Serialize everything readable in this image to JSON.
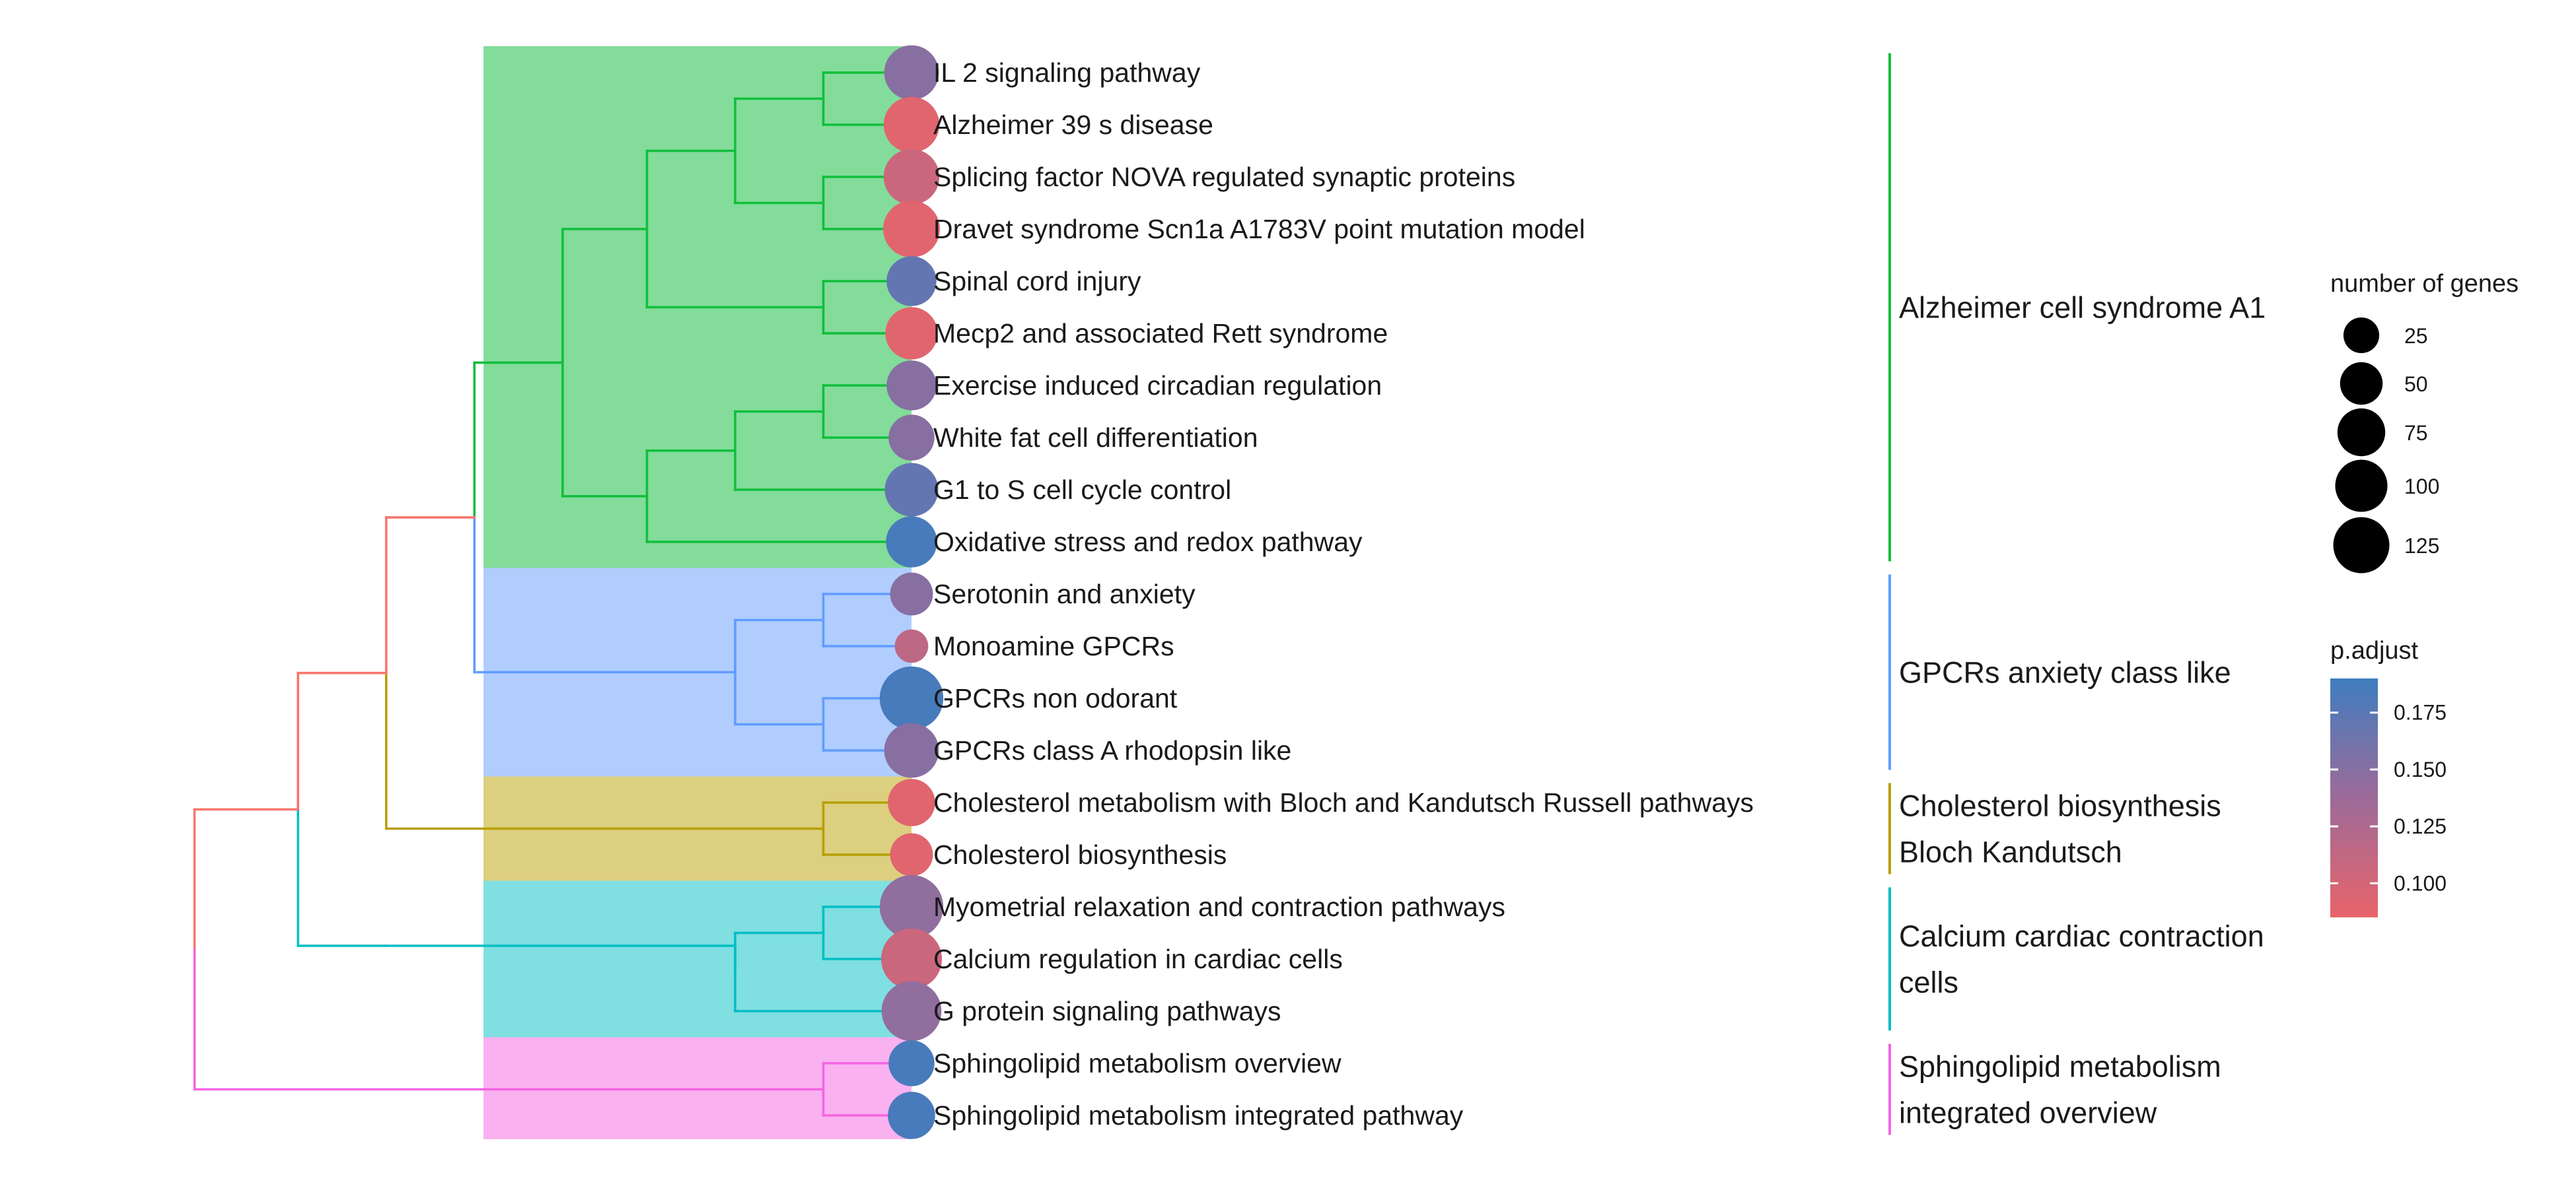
{
  "chart_data": {
    "type": "tree",
    "terms": [
      {
        "label": "IL 2 signaling pathway",
        "cluster": 0,
        "count": 90,
        "p_adjust": 0.15
      },
      {
        "label": "Alzheimer 39 s disease",
        "cluster": 0,
        "count": 95,
        "p_adjust": 0.09
      },
      {
        "label": "Splicing factor NOVA regulated synaptic proteins",
        "cluster": 0,
        "count": 95,
        "p_adjust": 0.105
      },
      {
        "label": "Dravet syndrome Scn1a A1783V point mutation model",
        "cluster": 0,
        "count": 100,
        "p_adjust": 0.09
      },
      {
        "label": "Spinal cord injury",
        "cluster": 0,
        "count": 70,
        "p_adjust": 0.17
      },
      {
        "label": "Mecp2 and associated Rett syndrome",
        "cluster": 0,
        "count": 80,
        "p_adjust": 0.09
      },
      {
        "label": "Exercise induced circadian regulation",
        "cluster": 0,
        "count": 70,
        "p_adjust": 0.15
      },
      {
        "label": "White fat cell differentiation",
        "cluster": 0,
        "count": 55,
        "p_adjust": 0.15
      },
      {
        "label": "G1 to S cell cycle control",
        "cluster": 0,
        "count": 85,
        "p_adjust": 0.17
      },
      {
        "label": "Oxidative stress and redox pathway",
        "cluster": 0,
        "count": 75,
        "p_adjust": 0.185
      },
      {
        "label": "Serotonin and anxiety",
        "cluster": 1,
        "count": 45,
        "p_adjust": 0.15
      },
      {
        "label": "Monoamine GPCRs",
        "cluster": 1,
        "count": 20,
        "p_adjust": 0.115
      },
      {
        "label": "GPCRs non odorant",
        "cluster": 1,
        "count": 135,
        "p_adjust": 0.185
      },
      {
        "label": "GPCRs class A rhodopsin like",
        "cluster": 1,
        "count": 90,
        "p_adjust": 0.15
      },
      {
        "label": "Cholesterol metabolism with Bloch and Kandutsch Russell pathways",
        "cluster": 2,
        "count": 60,
        "p_adjust": 0.09
      },
      {
        "label": "Cholesterol biosynthesis",
        "cluster": 2,
        "count": 45,
        "p_adjust": 0.09
      },
      {
        "label": "Myometrial relaxation and contraction pathways",
        "cluster": 3,
        "count": 135,
        "p_adjust": 0.145
      },
      {
        "label": "Calcium regulation in cardiac cells",
        "cluster": 3,
        "count": 120,
        "p_adjust": 0.105
      },
      {
        "label": "G protein signaling pathways",
        "cluster": 3,
        "count": 115,
        "p_adjust": 0.145
      },
      {
        "label": "Sphingolipid metabolism overview",
        "cluster": 4,
        "count": 55,
        "p_adjust": 0.185
      },
      {
        "label": "Sphingolipid metabolism integrated pathway",
        "cluster": 4,
        "count": 60,
        "p_adjust": 0.185
      }
    ],
    "clusters": [
      {
        "name": "Alzheimer cell syndrome A1",
        "lines": [
          "Alzheimer cell syndrome A1"
        ],
        "branch_color": "#10bf3b",
        "fill_color": "#83dc9a",
        "first": 0,
        "last": 9
      },
      {
        "name": "GPCRs anxiety class like",
        "lines": [
          "GPCRs anxiety class like"
        ],
        "branch_color": "#619cff",
        "fill_color": "#b0cdfe",
        "first": 10,
        "last": 13
      },
      {
        "name": "Cholesterol biosynthesis Bloch Kandutsch",
        "lines": [
          "Cholesterol biosynthesis",
          "Bloch Kandutsch"
        ],
        "branch_color": "#b79f00",
        "fill_color": "#dccf7f",
        "first": 14,
        "last": 15
      },
      {
        "name": "Calcium cardiac contraction cells",
        "lines": [
          "Calcium cardiac contraction",
          "cells"
        ],
        "branch_color": "#00bfc4",
        "fill_color": "#7fdfe1",
        "first": 16,
        "last": 18
      },
      {
        "name": "Sphingolipid metabolism integrated overview",
        "lines": [
          "Sphingolipid metabolism",
          "integrated overview"
        ],
        "branch_color": "#f564e3",
        "fill_color": "#f9b1f0",
        "first": 19,
        "last": 20
      }
    ],
    "dendrogram": {
      "leaf_tip": 1.0,
      "cluster_nodes": [
        {
          "cluster": 0,
          "splits": [
            {
              "children": [
                0,
                1
              ],
              "height": 0.77
            },
            {
              "children": [
                2,
                3
              ],
              "height": 0.77
            },
            {
              "children": [
                "n0",
                "n1"
              ],
              "height": 0.54,
              "id": "c0"
            },
            {
              "children": [
                4,
                5
              ],
              "height": 0.77,
              "id": "n2"
            },
            {
              "children": [
                "c0",
                "n2"
              ],
              "height": 0.31,
              "id": "c1"
            },
            {
              "children": [
                6,
                7
              ],
              "height": 0.77,
              "id": "n3"
            },
            {
              "children": [
                8,
                "n3"
              ],
              "height": 0.54,
              "id": "c2"
            },
            {
              "children": [
                "c2",
                9
              ],
              "height": 0.31,
              "id": "c3"
            },
            {
              "children": [
                "c1",
                "c3"
              ],
              "height": 0.09,
              "id": "root"
            }
          ]
        },
        {
          "cluster": 1,
          "splits": [
            {
              "children": [
                10,
                11
              ],
              "height": 0.77,
              "id": "n0"
            },
            {
              "children": [
                12,
                13
              ],
              "height": 0.77,
              "id": "n1"
            },
            {
              "children": [
                "n0",
                "n1"
              ],
              "height": 0.54,
              "id": "root"
            }
          ]
        },
        {
          "cluster": 2,
          "splits": [
            {
              "children": [
                14,
                15
              ],
              "height": 0.77,
              "id": "root"
            }
          ]
        },
        {
          "cluster": 3,
          "splits": [
            {
              "children": [
                16,
                17
              ],
              "height": 0.77,
              "id": "n0"
            },
            {
              "children": [
                "n0",
                18
              ],
              "height": 0.54,
              "id": "root"
            }
          ]
        },
        {
          "cluster": 4,
          "splits": [
            {
              "children": [
                19,
                20
              ],
              "height": 0.77,
              "id": "root"
            }
          ]
        }
      ],
      "top_links": [
        {
          "children": [
            "k0",
            "k1"
          ],
          "height": -0.14,
          "id": "t0",
          "color": "#619cff"
        },
        {
          "children": [
            "t0",
            "k2"
          ],
          "height": -0.37,
          "id": "t1",
          "color": "#b79f00"
        },
        {
          "children": [
            "t1",
            "k3"
          ],
          "height": -0.6,
          "id": "t2",
          "color": "#f8766d"
        },
        {
          "children": [
            "t2",
            "k3"
          ],
          "height": -0.82,
          "id": "t3",
          "color": "#00bfc4"
        },
        {
          "children": [
            "t3",
            "k4"
          ],
          "height": -1.05,
          "id": "t4",
          "color": "#f8766d"
        }
      ],
      "root_colors": [
        "#f8766d",
        "#f564e3"
      ]
    },
    "size_legend": {
      "title": "number of genes",
      "values": [
        25,
        50,
        75,
        100,
        125
      ]
    },
    "color_legend": {
      "title": "p.adjust",
      "ticks": [
        0.1,
        0.125,
        0.15,
        0.175
      ],
      "range": [
        0.085,
        0.19
      ],
      "low_color": "#e8646a",
      "mid_color": "#9d6b99",
      "high_color": "#3f7dbf"
    }
  }
}
